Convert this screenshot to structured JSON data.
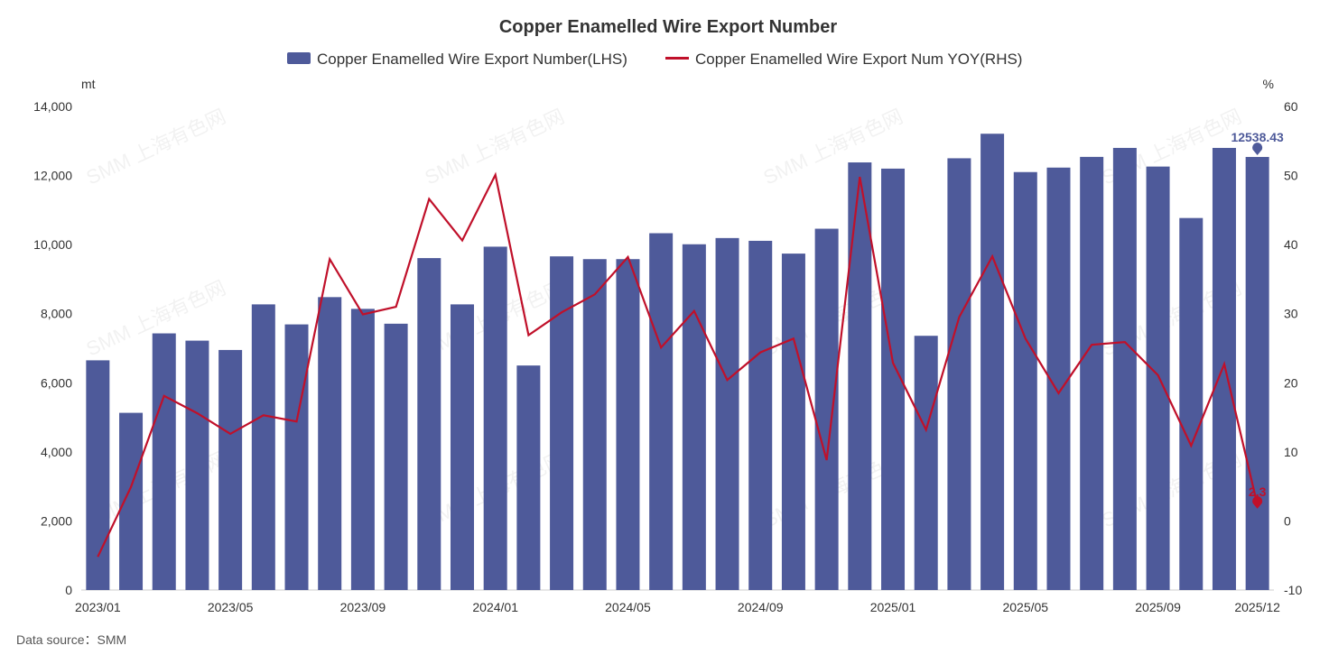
{
  "chart_data": {
    "type": "bar",
    "title": "Copper Enamelled Wire Export Number",
    "categories": [
      "2023/01",
      "2023/02",
      "2023/03",
      "2023/04",
      "2023/05",
      "2023/06",
      "2023/07",
      "2023/08",
      "2023/09",
      "2023/10",
      "2023/11",
      "2023/12",
      "2024/01",
      "2024/02",
      "2024/03",
      "2024/04",
      "2024/05",
      "2024/06",
      "2024/07",
      "2024/08",
      "2024/09",
      "2024/10",
      "2024/11",
      "2024/12",
      "2025/01",
      "2025/02",
      "2025/03",
      "2025/04",
      "2025/05",
      "2025/06",
      "2025/07",
      "2025/08",
      "2025/09",
      "2025/10",
      "2025/11",
      "2025/12"
    ],
    "x_tick_labels": [
      "2023/01",
      "2023/05",
      "2023/09",
      "2024/01",
      "2024/05",
      "2024/09",
      "2025/01",
      "2025/05",
      "2025/09",
      "2025/12"
    ],
    "series": [
      {
        "name": "Copper Enamelled Wire Export Number(LHS)",
        "type": "bar",
        "axis": "left",
        "color": "#4e5a9a",
        "values": [
          6650,
          5130,
          7430,
          7220,
          6950,
          8270,
          7690,
          8480,
          8140,
          7710,
          9610,
          8270,
          9940,
          6500,
          9660,
          9580,
          9580,
          10330,
          10010,
          10190,
          10110,
          9740,
          10460,
          12380,
          12200,
          7360,
          12500,
          13210,
          12100,
          12230,
          12540,
          12800,
          12260,
          10770,
          12800,
          12538.43
        ]
      },
      {
        "name": "Copper Enamelled Wire Export Num YOY(RHS)",
        "type": "line",
        "axis": "right",
        "color": "#c0102a",
        "values": [
          -5.2,
          4.9,
          18.1,
          15.6,
          12.6,
          15.3,
          14.4,
          37.9,
          29.9,
          31.0,
          46.6,
          40.6,
          50.1,
          26.9,
          30.2,
          32.8,
          38.2,
          25.1,
          30.4,
          20.4,
          24.4,
          26.4,
          8.8,
          49.8,
          22.9,
          13.2,
          29.5,
          38.3,
          26.4,
          18.5,
          25.5,
          25.9,
          21.1,
          10.9,
          22.7,
          2.3
        ]
      }
    ],
    "y_left": {
      "unit": "mt",
      "range": [
        0,
        14000
      ],
      "ticks": [
        "0",
        "2,000",
        "4,000",
        "6,000",
        "8,000",
        "10,000",
        "12,000",
        "14,000"
      ]
    },
    "y_right": {
      "unit": "%",
      "range": [
        -10,
        60
      ],
      "ticks": [
        "-10",
        "0",
        "10",
        "20",
        "30",
        "40",
        "50",
        "60"
      ]
    },
    "last_bar_label": "12538.43",
    "last_line_label": "2.3",
    "legend_position": "top-center",
    "grid": false,
    "source": "Data source：SMM",
    "watermark": "SMM 上海有色网"
  }
}
